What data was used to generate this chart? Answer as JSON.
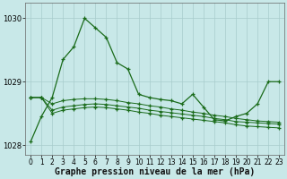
{
  "title": "Graphe pression niveau de la mer (hPa)",
  "bg_color": "#c8e8e8",
  "line_color": "#1a6b1a",
  "grid_color": "#a8cccc",
  "hours": [
    0,
    1,
    2,
    3,
    4,
    5,
    6,
    7,
    8,
    9,
    10,
    11,
    12,
    13,
    14,
    15,
    16,
    17,
    18,
    19,
    20,
    21,
    22,
    23
  ],
  "series_peak": [
    1028.05,
    1028.45,
    1028.75,
    1029.35,
    1029.55,
    1030.0,
    1029.85,
    1029.7,
    1029.3,
    1029.2,
    1028.8,
    1028.75,
    1028.72,
    1028.7,
    1028.65,
    1028.8,
    1028.6,
    1028.4,
    1028.38,
    1028.45,
    1028.5,
    1028.65,
    1029.0,
    1029.0
  ],
  "series_flat1": [
    1028.75,
    1028.75,
    1028.65,
    1028.7,
    1028.72,
    1028.73,
    1028.73,
    1028.72,
    1028.7,
    1028.67,
    1028.65,
    1028.62,
    1028.6,
    1028.57,
    1028.55,
    1028.52,
    1028.5,
    1028.47,
    1028.45,
    1028.42,
    1028.4,
    1028.38,
    1028.37,
    1028.36
  ],
  "series_flat2": [
    1028.75,
    1028.75,
    1028.55,
    1028.6,
    1028.62,
    1028.64,
    1028.65,
    1028.64,
    1028.62,
    1028.6,
    1028.58,
    1028.55,
    1028.53,
    1028.51,
    1028.49,
    1028.47,
    1028.45,
    1028.42,
    1028.4,
    1028.37,
    1028.36,
    1028.35,
    1028.34,
    1028.33
  ],
  "series_flat3": [
    1028.75,
    1028.75,
    1028.5,
    1028.55,
    1028.57,
    1028.59,
    1028.6,
    1028.59,
    1028.57,
    1028.55,
    1028.52,
    1028.5,
    1028.47,
    1028.45,
    1028.43,
    1028.41,
    1028.39,
    1028.37,
    1028.35,
    1028.32,
    1028.3,
    1028.29,
    1028.28,
    1028.27
  ],
  "ylim": [
    1027.85,
    1030.25
  ],
  "yticks": [
    1028,
    1029,
    1030
  ],
  "xlim": [
    -0.5,
    23.5
  ],
  "title_fontsize": 7,
  "tick_fontsize": 5.5
}
